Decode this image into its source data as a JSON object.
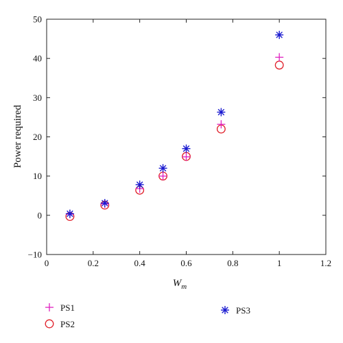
{
  "chart_data": {
    "type": "scatter",
    "title": "",
    "xlabel_base": "W",
    "xlabel_sub": "m",
    "ylabel": "Power required",
    "xlim": [
      0,
      1.2
    ],
    "ylim": [
      -10,
      50
    ],
    "xticks": [
      0,
      0.2,
      0.4,
      0.6,
      0.8,
      1.0,
      1.2
    ],
    "xtick_labels": [
      "0",
      "0.2",
      "0.4",
      "0.6",
      "0.8",
      "1",
      "1.2"
    ],
    "yticks": [
      -10,
      0,
      10,
      20,
      30,
      40,
      50
    ],
    "ytick_labels": [
      "−10",
      "0",
      "10",
      "20",
      "30",
      "40",
      "50"
    ],
    "grid": false,
    "legend_placement": "below",
    "series": [
      {
        "name": "PS1",
        "marker": "plus",
        "color": "#e020c0",
        "x": [
          0.1,
          0.25,
          0.4,
          0.5,
          0.6,
          0.75,
          1.0
        ],
        "y": [
          0.3,
          2.9,
          6.8,
          10.0,
          14.9,
          23.2,
          40.3
        ]
      },
      {
        "name": "PS2",
        "marker": "circle",
        "color": "#e0202a",
        "x": [
          0.1,
          0.25,
          0.4,
          0.5,
          0.6,
          0.75,
          1.0
        ],
        "y": [
          -0.3,
          2.6,
          6.4,
          10.0,
          15.0,
          22.0,
          38.3
        ]
      },
      {
        "name": "PS3",
        "marker": "star",
        "color": "#1a1ad0",
        "x": [
          0.1,
          0.25,
          0.4,
          0.5,
          0.6,
          0.75,
          1.0
        ],
        "y": [
          0.4,
          3.1,
          7.8,
          12.0,
          17.0,
          26.3,
          46.0
        ]
      }
    ]
  }
}
